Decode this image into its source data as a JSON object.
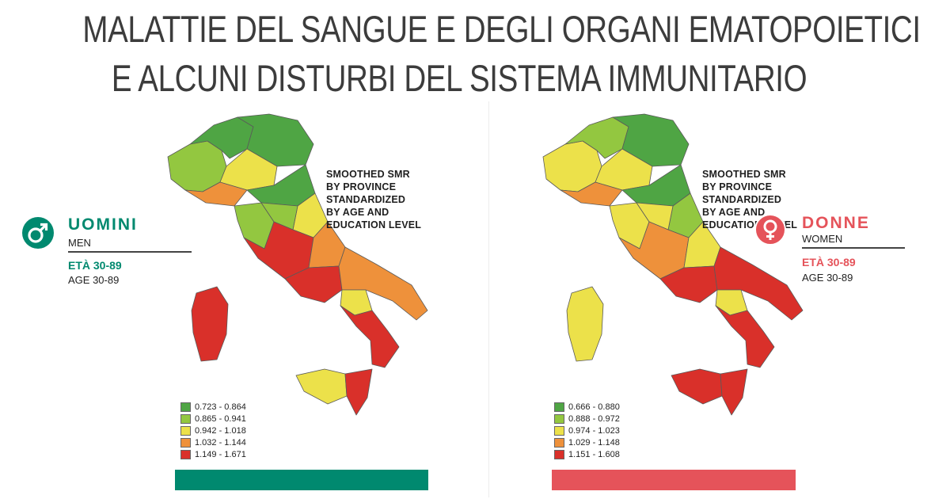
{
  "title": {
    "line1": "MALATTIE DEL SANGUE E DEGLI ORGANI EMATOPOIETICI",
    "line2": "E ALCUNI DISTURBI DEL SISTEMA IMMUNITARIO"
  },
  "colors": {
    "men_accent": "#00896f",
    "women_accent": "#e5535a",
    "class1": "#4fa544",
    "class2": "#93c740",
    "class3": "#ece14a",
    "class4": "#ee913b",
    "class5": "#d9302a"
  },
  "men": {
    "icon": "male-symbol-icon",
    "name": "UOMINI",
    "name_en": "MEN",
    "age_it": "ETÀ 30-89",
    "age_en": "AGE 30-89",
    "note": [
      "SMOOTHED SMR",
      "BY PROVINCE",
      "STANDARDIZED",
      "BY AGE AND",
      "EDUCATION LEVEL"
    ],
    "legend": [
      "0.723 - 0.864",
      "0.865 - 0.941",
      "0.942 - 1.018",
      "1.032 - 1.144",
      "1.149 - 1.671"
    ]
  },
  "women": {
    "icon": "female-symbol-icon",
    "name": "DONNE",
    "name_en": "WOMEN",
    "age_it": "ETÀ 30-89",
    "age_en": "AGE 30-89",
    "note": [
      "SMOOTHED SMR",
      "BY PROVINCE",
      "STANDARDIZED",
      "BY AGE AND",
      "EDUCATION LEVEL"
    ],
    "legend": [
      "0.666 - 0.880",
      "0.888 - 0.972",
      "0.974 - 1.023",
      "1.029 - 1.148",
      "1.151 - 1.608"
    ]
  }
}
